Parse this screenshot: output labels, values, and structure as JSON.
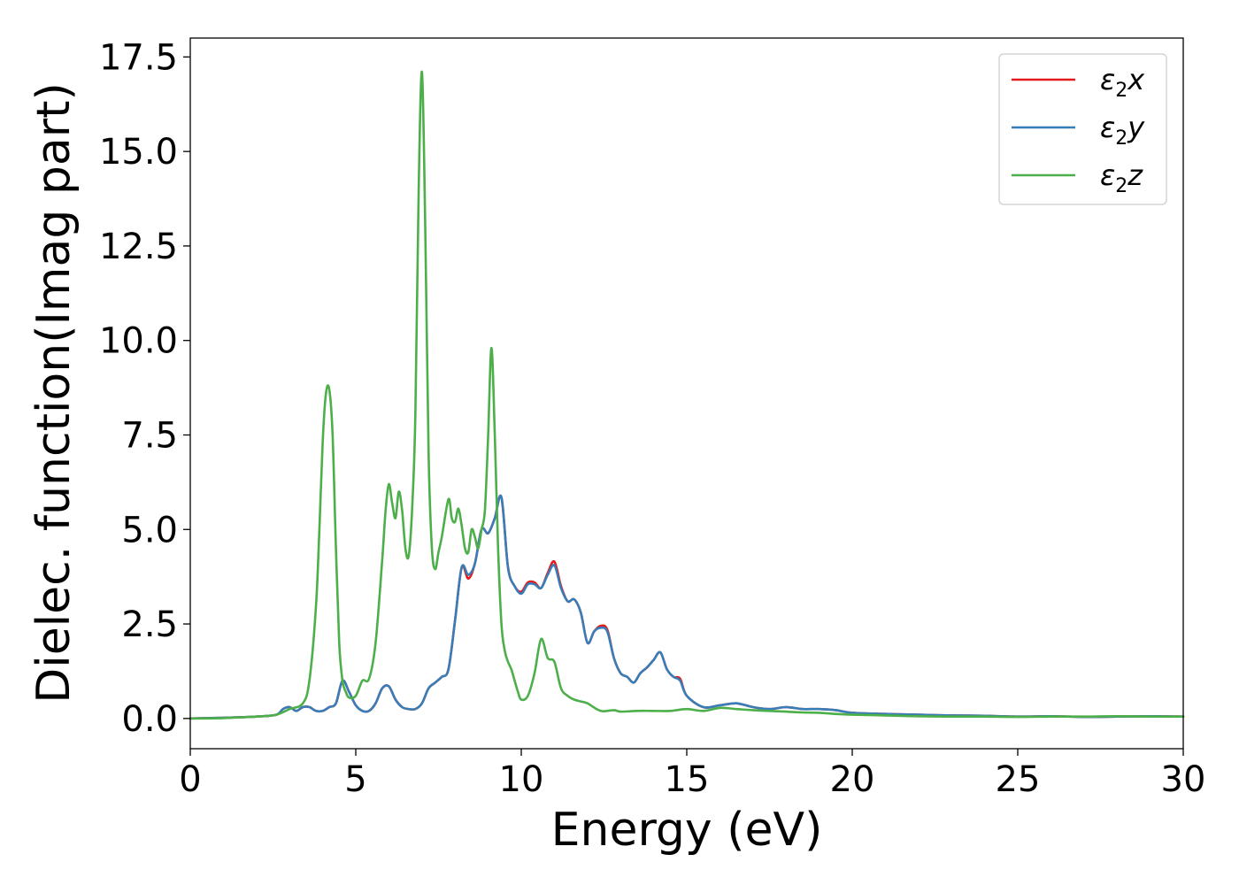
{
  "chart_data": {
    "type": "line",
    "title": "",
    "xlabel": "Energy (eV)",
    "ylabel": "Dielec. function(Imag part)",
    "xlim": [
      0,
      30
    ],
    "ylim": [
      -0.8,
      18.0
    ],
    "xticks": [
      0,
      5,
      10,
      15,
      20,
      25,
      30
    ],
    "xtick_labels": [
      "0",
      "5",
      "10",
      "15",
      "20",
      "25",
      "30"
    ],
    "yticks": [
      0.0,
      2.5,
      5.0,
      7.5,
      10.0,
      12.5,
      15.0,
      17.5
    ],
    "ytick_labels": [
      "0.0",
      "2.5",
      "5.0",
      "7.5",
      "10.0",
      "12.5",
      "15.0",
      "17.5"
    ],
    "grid": false,
    "legend_position": "top-right",
    "series": [
      {
        "name": "ε2x",
        "legend_base": "ε",
        "legend_sub": "2",
        "legend_suffix": "x",
        "color": "#e41a1c",
        "x": [
          0,
          1,
          2,
          2.6,
          2.8,
          3.0,
          3.2,
          3.4,
          3.6,
          3.8,
          4.0,
          4.2,
          4.4,
          4.6,
          4.8,
          5.0,
          5.2,
          5.4,
          5.6,
          5.8,
          6.0,
          6.2,
          6.4,
          6.6,
          6.8,
          7.0,
          7.2,
          7.4,
          7.6,
          7.8,
          8.0,
          8.2,
          8.4,
          8.6,
          8.8,
          9.0,
          9.2,
          9.4,
          9.6,
          9.8,
          10.0,
          10.2,
          10.4,
          10.6,
          10.8,
          11.0,
          11.2,
          11.4,
          11.6,
          11.8,
          12.0,
          12.2,
          12.4,
          12.6,
          12.8,
          13.0,
          13.2,
          13.4,
          13.6,
          13.8,
          14.0,
          14.2,
          14.4,
          14.6,
          14.8,
          15.0,
          15.5,
          16.0,
          16.5,
          17.0,
          17.5,
          18.0,
          18.5,
          19.0,
          19.5,
          20.0,
          21.0,
          22.0,
          23.0,
          24.0,
          25.0,
          26.0,
          27.0,
          28.0,
          29.0,
          30.0
        ],
        "y": [
          0.0,
          0.02,
          0.05,
          0.1,
          0.25,
          0.3,
          0.2,
          0.3,
          0.3,
          0.2,
          0.2,
          0.3,
          0.4,
          1.0,
          0.7,
          0.35,
          0.2,
          0.2,
          0.4,
          0.8,
          0.85,
          0.5,
          0.3,
          0.25,
          0.25,
          0.4,
          0.8,
          0.95,
          1.1,
          1.3,
          2.6,
          4.0,
          3.7,
          4.1,
          5.0,
          4.9,
          5.3,
          5.85,
          4.0,
          3.5,
          3.35,
          3.6,
          3.6,
          3.45,
          3.85,
          4.15,
          3.5,
          3.1,
          3.15,
          2.8,
          2.0,
          2.3,
          2.45,
          2.35,
          1.6,
          1.2,
          1.1,
          0.95,
          1.2,
          1.35,
          1.55,
          1.75,
          1.3,
          1.1,
          1.05,
          0.6,
          0.3,
          0.35,
          0.4,
          0.3,
          0.25,
          0.3,
          0.25,
          0.25,
          0.22,
          0.15,
          0.12,
          0.1,
          0.08,
          0.07,
          0.05,
          0.06,
          0.04,
          0.05,
          0.06,
          0.05
        ]
      },
      {
        "name": "ε2y",
        "legend_base": "ε",
        "legend_sub": "2",
        "legend_suffix": "y",
        "color": "#377eb8",
        "x": [
          0,
          1,
          2,
          2.6,
          2.8,
          3.0,
          3.2,
          3.4,
          3.6,
          3.8,
          4.0,
          4.2,
          4.4,
          4.6,
          4.8,
          5.0,
          5.2,
          5.4,
          5.6,
          5.8,
          6.0,
          6.2,
          6.4,
          6.6,
          6.8,
          7.0,
          7.2,
          7.4,
          7.6,
          7.8,
          8.0,
          8.2,
          8.4,
          8.6,
          8.8,
          9.0,
          9.2,
          9.4,
          9.6,
          9.8,
          10.0,
          10.2,
          10.4,
          10.6,
          10.8,
          11.0,
          11.2,
          11.4,
          11.6,
          11.8,
          12.0,
          12.2,
          12.4,
          12.6,
          12.8,
          13.0,
          13.2,
          13.4,
          13.6,
          13.8,
          14.0,
          14.2,
          14.4,
          14.6,
          14.8,
          15.0,
          15.5,
          16.0,
          16.5,
          17.0,
          17.5,
          18.0,
          18.5,
          19.0,
          19.5,
          20.0,
          21.0,
          22.0,
          23.0,
          24.0,
          25.0,
          26.0,
          27.0,
          28.0,
          29.0,
          30.0
        ],
        "y": [
          0.0,
          0.02,
          0.05,
          0.1,
          0.25,
          0.3,
          0.2,
          0.3,
          0.3,
          0.2,
          0.2,
          0.3,
          0.4,
          1.0,
          0.7,
          0.35,
          0.2,
          0.2,
          0.4,
          0.8,
          0.85,
          0.5,
          0.3,
          0.25,
          0.25,
          0.4,
          0.8,
          0.95,
          1.1,
          1.3,
          2.6,
          4.0,
          3.8,
          4.1,
          5.0,
          4.9,
          5.3,
          5.85,
          4.0,
          3.5,
          3.3,
          3.55,
          3.55,
          3.45,
          3.8,
          4.05,
          3.45,
          3.1,
          3.15,
          2.8,
          2.0,
          2.3,
          2.4,
          2.3,
          1.6,
          1.2,
          1.1,
          0.95,
          1.2,
          1.35,
          1.55,
          1.75,
          1.3,
          1.1,
          1.0,
          0.6,
          0.3,
          0.35,
          0.4,
          0.3,
          0.25,
          0.3,
          0.25,
          0.25,
          0.22,
          0.15,
          0.12,
          0.1,
          0.08,
          0.07,
          0.05,
          0.06,
          0.04,
          0.05,
          0.06,
          0.05
        ]
      },
      {
        "name": "ε2z",
        "legend_base": "ε",
        "legend_sub": "2",
        "legend_suffix": "z",
        "color": "#4daf4a",
        "x": [
          0,
          1,
          2,
          2.6,
          3.0,
          3.4,
          3.6,
          3.8,
          3.9,
          4.0,
          4.1,
          4.2,
          4.3,
          4.4,
          4.5,
          4.6,
          4.7,
          4.8,
          5.0,
          5.2,
          5.4,
          5.6,
          5.8,
          5.9,
          6.0,
          6.1,
          6.2,
          6.3,
          6.4,
          6.5,
          6.6,
          6.7,
          6.8,
          6.9,
          7.0,
          7.1,
          7.2,
          7.3,
          7.4,
          7.5,
          7.6,
          7.8,
          7.9,
          8.0,
          8.1,
          8.2,
          8.3,
          8.4,
          8.5,
          8.6,
          8.7,
          8.8,
          8.9,
          9.0,
          9.1,
          9.2,
          9.3,
          9.4,
          9.5,
          9.6,
          9.7,
          9.8,
          9.9,
          10.0,
          10.2,
          10.4,
          10.6,
          10.8,
          11.0,
          11.2,
          11.4,
          11.6,
          11.8,
          12.0,
          12.4,
          12.8,
          13.0,
          13.5,
          14.0,
          14.5,
          15.0,
          15.5,
          16.0,
          16.5,
          17.0,
          17.5,
          18.0,
          18.5,
          19.0,
          19.5,
          20.0,
          21.0,
          22.0,
          23.0,
          24.0,
          25.0,
          26.0,
          27.0,
          28.0,
          29.0,
          30.0
        ],
        "y": [
          0.0,
          0.01,
          0.05,
          0.1,
          0.25,
          0.4,
          1.0,
          3.0,
          5.0,
          7.3,
          8.6,
          8.7,
          7.5,
          4.5,
          2.0,
          1.0,
          0.7,
          0.55,
          0.6,
          1.0,
          1.05,
          2.0,
          4.2,
          5.5,
          6.2,
          5.7,
          5.3,
          6.0,
          5.5,
          4.5,
          4.3,
          5.5,
          8.0,
          14.0,
          17.1,
          13.0,
          7.0,
          4.5,
          3.95,
          4.4,
          4.8,
          5.8,
          5.3,
          5.2,
          5.55,
          5.1,
          4.5,
          4.4,
          5.0,
          4.8,
          4.5,
          5.0,
          5.5,
          7.5,
          9.8,
          7.5,
          4.5,
          2.5,
          1.8,
          1.5,
          1.3,
          1.0,
          0.7,
          0.5,
          0.6,
          1.2,
          2.1,
          1.6,
          1.5,
          0.8,
          0.6,
          0.5,
          0.45,
          0.4,
          0.2,
          0.22,
          0.18,
          0.2,
          0.2,
          0.2,
          0.25,
          0.2,
          0.28,
          0.25,
          0.22,
          0.2,
          0.18,
          0.16,
          0.15,
          0.12,
          0.1,
          0.08,
          0.06,
          0.05,
          0.05,
          0.04,
          0.05,
          0.05,
          0.06,
          0.05,
          0.05
        ]
      }
    ]
  }
}
